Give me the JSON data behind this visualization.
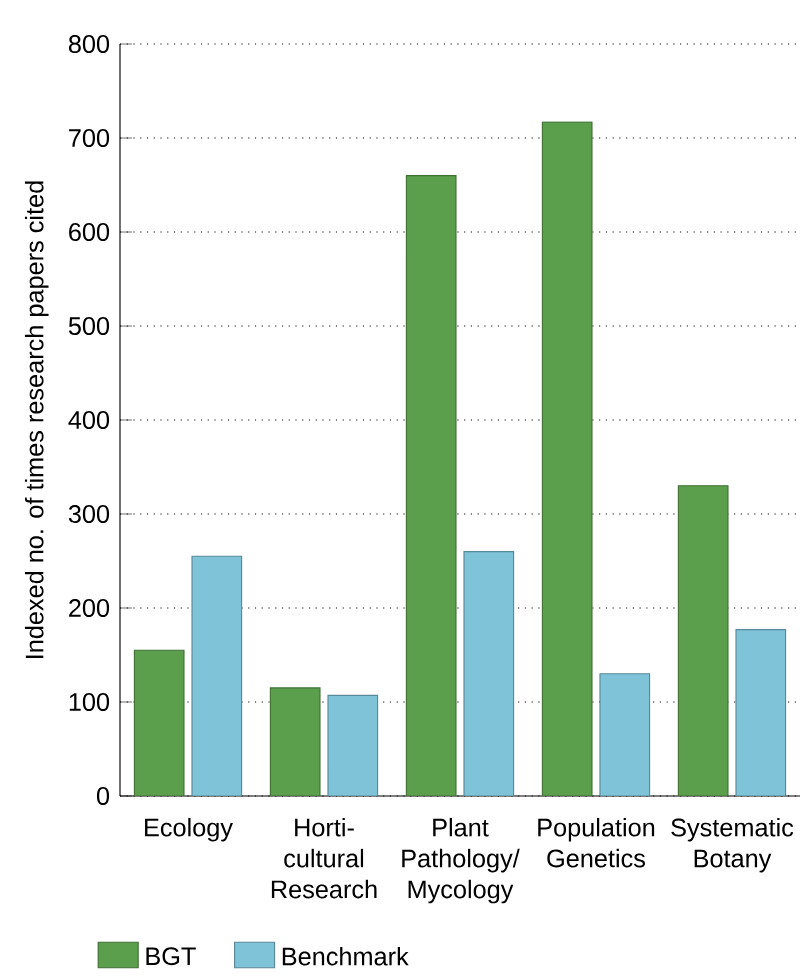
{
  "chart_data": {
    "type": "bar",
    "ylabel": "Indexed no. of times research papers cited",
    "categories": [
      "Ecology",
      "Horti-cultural Research",
      "Plant Pathology/ Mycology",
      "Population Genetics",
      "Systematic Botany"
    ],
    "series": [
      {
        "name": "BGT",
        "color": "#5b9e4c",
        "values": [
          155,
          115,
          660,
          717,
          330
        ]
      },
      {
        "name": "Benchmark",
        "color": "#7fc3d9",
        "values": [
          255,
          107,
          260,
          130,
          177
        ]
      }
    ],
    "ylim": [
      0,
      800
    ],
    "yticks": [
      0,
      100,
      200,
      300,
      400,
      500,
      600,
      700,
      800
    ],
    "grid": "y",
    "legend": "bottom"
  }
}
